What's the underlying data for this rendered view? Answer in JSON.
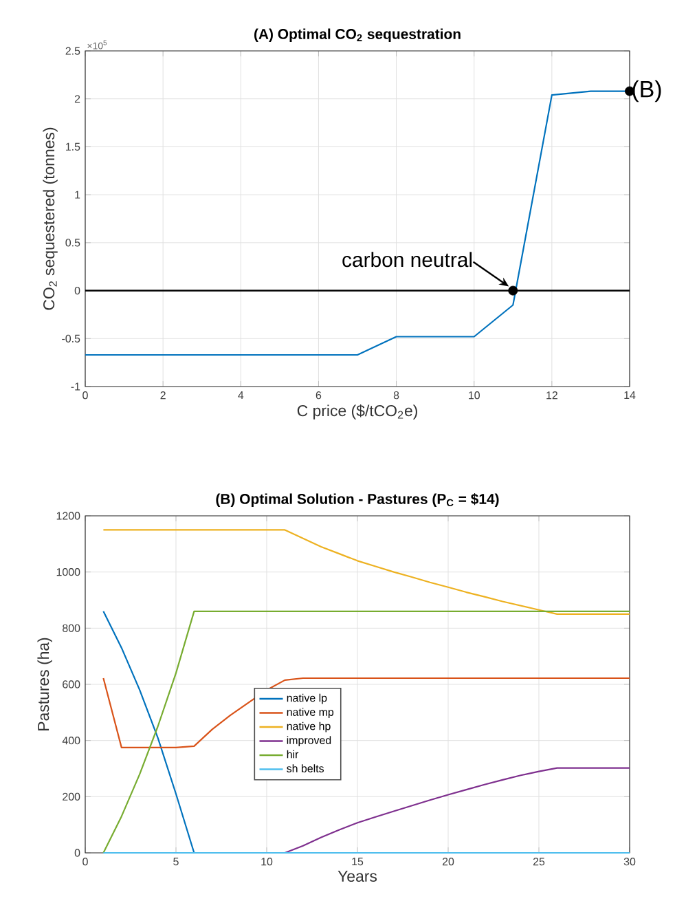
{
  "chart_data": [
    {
      "type": "line",
      "title": "(A) Optimal CO$_{2}$ sequestration",
      "xlabel": "C price ($/tCO$_{2}$e)",
      "ylabel": "CO$_{2}$ sequestered (tonnes)",
      "x": [
        0,
        1,
        2,
        3,
        4,
        5,
        6,
        7,
        8,
        9,
        10,
        11,
        12,
        13,
        14
      ],
      "series": [
        {
          "color": "#0072bd",
          "values": [
            -0.67,
            -0.67,
            -0.67,
            -0.67,
            -0.67,
            -0.67,
            -0.67,
            -0.67,
            -0.48,
            -0.48,
            -0.48,
            -0.15,
            2.04,
            2.08,
            2.08
          ]
        },
        {
          "type": "scatter",
          "color": "#000000",
          "x": [
            11,
            14
          ],
          "values": [
            0,
            2.08
          ]
        }
      ],
      "xlim": [
        0,
        14
      ],
      "xticks": [
        0,
        2,
        4,
        6,
        8,
        10,
        12,
        14
      ],
      "ylim": [
        -1,
        2.5
      ],
      "yticks": [
        -1,
        -0.5,
        0,
        0.5,
        1,
        1.5,
        2,
        2.5
      ],
      "ref_lines": [
        {
          "axis": "y",
          "value": 0,
          "color": "#000000"
        }
      ],
      "annotations": [
        "×10$^{5}$",
        {
          "text": "carbon neutral",
          "x": 11,
          "y": 0
        },
        {
          "text": "(B)",
          "x": 14,
          "y": 2.08
        }
      ],
      "grid": true,
      "legend": false
    },
    {
      "type": "line",
      "title": "(B) Optimal Solution - Pastures (P$_{C}$ = $14)",
      "xlabel": "Years",
      "ylabel": "Pastures (ha)",
      "x": [
        1,
        2,
        3,
        4,
        5,
        6,
        7,
        8,
        9,
        10,
        11,
        12,
        13,
        14,
        15,
        16,
        17,
        18,
        19,
        20,
        21,
        22,
        23,
        24,
        25,
        26,
        27,
        28,
        29,
        30
      ],
      "series": [
        {
          "name": "native lp",
          "color": "#0072bd",
          "values": [
            860,
            730,
            580,
            410,
            210,
            0,
            null,
            null,
            null,
            null,
            null,
            null,
            null,
            null,
            null,
            null,
            null,
            null,
            null,
            null,
            null,
            null,
            null,
            null,
            null,
            null,
            null,
            null,
            null,
            null
          ]
        },
        {
          "name": "native mp",
          "color": "#d95319",
          "values": [
            622,
            375,
            375,
            375,
            375,
            380,
            440,
            490,
            535,
            580,
            615,
            622,
            622,
            622,
            622,
            622,
            622,
            622,
            622,
            622,
            622,
            622,
            622,
            622,
            622,
            622,
            622,
            622,
            622,
            622
          ]
        },
        {
          "name": "native hp",
          "color": "#edb120",
          "values": [
            1150,
            1150,
            1150,
            1150,
            1150,
            1150,
            1150,
            1150,
            1150,
            1150,
            1150,
            1120,
            1090,
            1065,
            1040,
            1020,
            1000,
            982,
            963,
            946,
            928,
            912,
            895,
            880,
            865,
            850,
            850,
            850,
            850,
            850
          ]
        },
        {
          "name": "improved",
          "color": "#7e2f8e",
          "values": [
            null,
            null,
            null,
            null,
            null,
            null,
            null,
            null,
            null,
            null,
            0,
            25,
            55,
            82,
            107,
            128,
            148,
            168,
            188,
            207,
            225,
            243,
            260,
            276,
            290,
            302,
            302,
            302,
            302,
            302
          ]
        },
        {
          "name": "hir",
          "color": "#77ac30",
          "values": [
            0,
            130,
            280,
            450,
            640,
            860,
            860,
            860,
            860,
            860,
            860,
            860,
            860,
            860,
            860,
            860,
            860,
            860,
            860,
            860,
            860,
            860,
            860,
            860,
            860,
            860,
            860,
            860,
            860,
            860
          ]
        },
        {
          "name": "sh belts",
          "color": "#4dbeee",
          "values": [
            0,
            0,
            0,
            0,
            0,
            0,
            0,
            0,
            0,
            0,
            0,
            0,
            0,
            0,
            0,
            0,
            0,
            0,
            0,
            0,
            0,
            0,
            0,
            0,
            0,
            0,
            0,
            0,
            0,
            0
          ]
        }
      ],
      "xlim": [
        0,
        30
      ],
      "xticks": [
        0,
        5,
        10,
        15,
        20,
        25,
        30
      ],
      "ylim": [
        0,
        1200
      ],
      "yticks": [
        0,
        200,
        400,
        600,
        800,
        1000,
        1200
      ],
      "grid": true,
      "legend": "center"
    }
  ]
}
